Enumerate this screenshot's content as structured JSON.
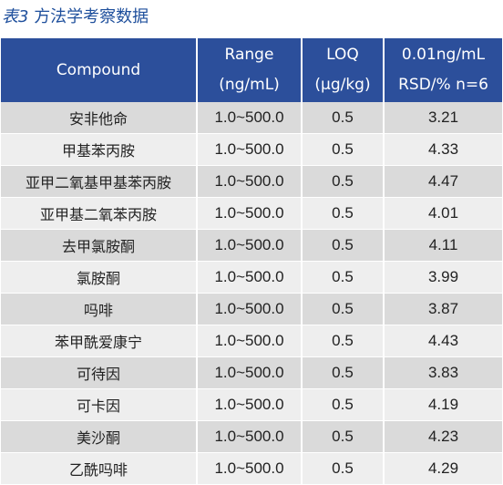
{
  "caption": {
    "label": "表3",
    "text": "方法学考察数据"
  },
  "table": {
    "headers": {
      "compound": "Compound",
      "range_line1": "Range",
      "range_line2": "(ng/mL)",
      "loq_line1": "LOQ",
      "loq_line2": "(µg/kg)",
      "rsd_line1": "0.01ng/mL",
      "rsd_line2": "RSD/% n=6"
    },
    "rows": [
      {
        "compound": "安非他命",
        "range": "1.0~500.0",
        "loq": "0.5",
        "rsd": "3.21"
      },
      {
        "compound": "甲基苯丙胺",
        "range": "1.0~500.0",
        "loq": "0.5",
        "rsd": "4.33"
      },
      {
        "compound": "亚甲二氧基甲基苯丙胺",
        "range": "1.0~500.0",
        "loq": "0.5",
        "rsd": "4.47"
      },
      {
        "compound": "亚甲基二氧苯丙胺",
        "range": "1.0~500.0",
        "loq": "0.5",
        "rsd": "4.01"
      },
      {
        "compound": "去甲氯胺酮",
        "range": "1.0~500.0",
        "loq": "0.5",
        "rsd": "4.11"
      },
      {
        "compound": "氯胺酮",
        "range": "1.0~500.0",
        "loq": "0.5",
        "rsd": "3.99"
      },
      {
        "compound": "吗啡",
        "range": "1.0~500.0",
        "loq": "0.5",
        "rsd": "3.87"
      },
      {
        "compound": "苯甲酰爱康宁",
        "range": "1.0~500.0",
        "loq": "0.5",
        "rsd": "4.43"
      },
      {
        "compound": "可待因",
        "range": "1.0~500.0",
        "loq": "0.5",
        "rsd": "3.83"
      },
      {
        "compound": "可卡因",
        "range": "1.0~500.0",
        "loq": "0.5",
        "rsd": "4.19"
      },
      {
        "compound": "美沙酮",
        "range": "1.0~500.0",
        "loq": "0.5",
        "rsd": "4.23"
      },
      {
        "compound": "乙酰吗啡",
        "range": "1.0~500.0",
        "loq": "0.5",
        "rsd": "4.29"
      }
    ]
  },
  "colors": {
    "title": "#1e4f9c",
    "header_bg": "#2c4f9b",
    "row_odd_bg": "#dadada",
    "row_even_bg": "#eeeeee"
  }
}
